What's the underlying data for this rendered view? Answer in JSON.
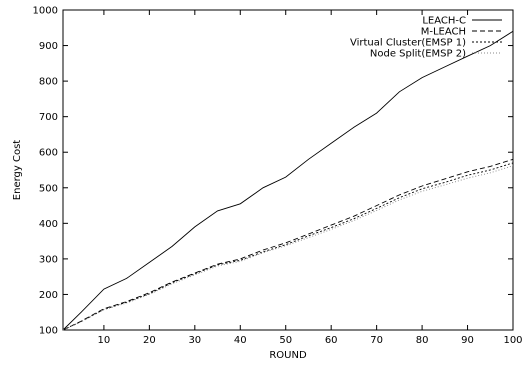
{
  "chart_data": {
    "type": "line",
    "title": "",
    "xlabel": "ROUND",
    "ylabel": "Energy Cost",
    "xlim": [
      1,
      100
    ],
    "ylim": [
      100,
      1000
    ],
    "x_ticks": [
      10,
      20,
      30,
      40,
      50,
      60,
      70,
      80,
      90,
      100
    ],
    "y_ticks": [
      100,
      200,
      300,
      400,
      500,
      600,
      700,
      800,
      900,
      1000
    ],
    "grid": false,
    "legend_position": "top-right",
    "x": [
      1,
      5,
      10,
      15,
      20,
      25,
      30,
      35,
      40,
      45,
      50,
      55,
      60,
      65,
      70,
      75,
      80,
      85,
      90,
      95,
      100
    ],
    "series": [
      {
        "name": "LEACH-C",
        "line_style": "solid",
        "color": "#000000",
        "values": [
          100,
          150,
          215,
          245,
          290,
          335,
          390,
          435,
          455,
          500,
          530,
          580,
          625,
          670,
          710,
          770,
          810,
          840,
          870,
          900,
          940
        ]
      },
      {
        "name": "M-LEACH",
        "line_style": "dashed",
        "color": "#000000",
        "values": [
          100,
          125,
          160,
          180,
          205,
          235,
          260,
          285,
          300,
          325,
          345,
          370,
          395,
          420,
          450,
          480,
          505,
          525,
          545,
          560,
          580
        ]
      },
      {
        "name": "Virtual Cluster(EMSP 1)",
        "line_style": "short-dashed",
        "color": "#000000",
        "values": [
          100,
          124,
          158,
          178,
          202,
          233,
          258,
          283,
          296,
          320,
          340,
          365,
          388,
          413,
          442,
          472,
          497,
          515,
          535,
          550,
          570
        ]
      },
      {
        "name": "Node Split(EMSP 2)",
        "line_style": "dotted",
        "color": "#888888",
        "values": [
          100,
          123,
          157,
          176,
          200,
          230,
          255,
          280,
          293,
          317,
          337,
          360,
          383,
          408,
          436,
          466,
          490,
          508,
          527,
          542,
          562
        ]
      }
    ]
  }
}
